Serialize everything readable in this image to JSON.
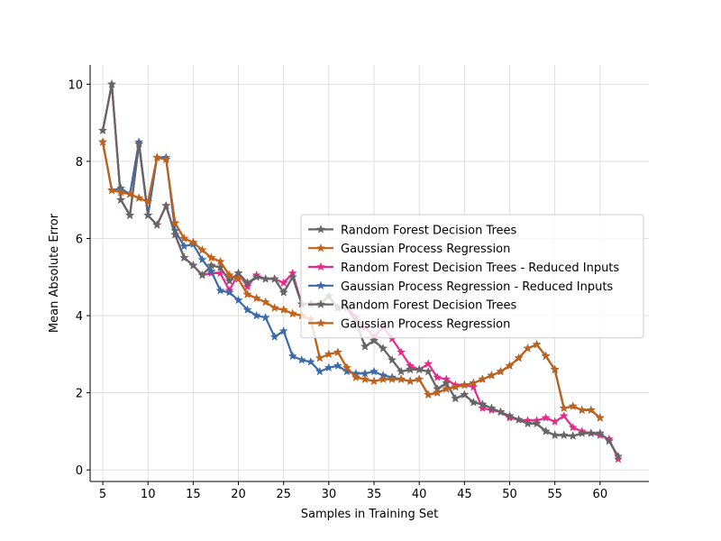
{
  "chart_data": {
    "type": "line",
    "xlabel": "Samples in Training Set",
    "ylabel": "Mean Absolute Error",
    "xlim": [
      3.6,
      65.4
    ],
    "ylim": [
      -0.3,
      10.5
    ],
    "xticks": [
      5,
      10,
      15,
      20,
      25,
      30,
      35,
      40,
      45,
      50,
      55,
      60
    ],
    "yticks": [
      0,
      2,
      4,
      6,
      8,
      10
    ],
    "grid": true,
    "legend_position": "center-right",
    "series": [
      {
        "name": "Random Forest Decision Trees",
        "color": "#666666",
        "x": [
          5,
          6,
          7,
          8,
          9,
          10,
          11,
          12,
          13,
          14,
          15,
          16,
          17,
          18,
          19,
          20,
          21,
          22,
          23,
          24,
          25,
          26,
          27,
          28,
          29,
          30,
          31,
          32,
          33,
          34,
          35,
          36,
          37,
          38,
          39,
          40,
          41,
          42,
          43,
          44,
          45,
          46,
          47,
          48,
          49,
          50,
          51,
          52,
          53,
          54,
          55,
          56,
          57,
          58,
          59,
          60,
          61,
          62
        ],
        "y": [
          8.8,
          10.0,
          7.0,
          6.6,
          8.45,
          6.6,
          6.35,
          6.85,
          6.1,
          5.5,
          5.3,
          5.05,
          5.3,
          5.25,
          4.9,
          5.1,
          4.85,
          5.0,
          4.95,
          4.95,
          4.6,
          5.0,
          4.3,
          4.3,
          4.3,
          4.5,
          4.2,
          4.2,
          3.85,
          3.2,
          3.35,
          3.15,
          2.85,
          2.55,
          2.6,
          2.6,
          2.55,
          2.1,
          2.25,
          1.85,
          1.95,
          1.75,
          1.7,
          1.6,
          1.5,
          1.4,
          1.3,
          1.2,
          1.2,
          1.0,
          0.9,
          0.9,
          0.88,
          0.95,
          0.95,
          0.95,
          0.75,
          0.35
        ]
      },
      {
        "name": "Gaussian Process Regression",
        "color": "#c0621b",
        "x": [
          5,
          6,
          7,
          8,
          9,
          10,
          11,
          12,
          13,
          14,
          15,
          16,
          17,
          18,
          19,
          20,
          21,
          22,
          23,
          24,
          25,
          26,
          27,
          28,
          29,
          30,
          31,
          32,
          33,
          34,
          35,
          36,
          37,
          38,
          39,
          40,
          41,
          42,
          43,
          44,
          45,
          46,
          47,
          48,
          49,
          50,
          51,
          52,
          53,
          54,
          55,
          56,
          57,
          58,
          59,
          60
        ],
        "y": [
          8.5,
          7.25,
          7.2,
          7.15,
          7.05,
          6.95,
          8.1,
          8.05,
          6.4,
          6.0,
          5.9,
          5.7,
          5.5,
          5.4,
          5.05,
          4.95,
          4.55,
          4.45,
          4.35,
          4.2,
          4.15,
          4.05,
          4.0,
          3.9,
          2.9,
          3.0,
          3.05,
          2.65,
          2.4,
          2.35,
          2.3,
          2.35,
          2.35,
          2.35,
          2.3,
          2.35,
          1.95,
          2.0,
          2.1,
          2.15,
          2.2,
          2.25,
          2.35,
          2.45,
          2.55,
          2.7,
          2.9,
          3.15,
          3.25,
          2.95,
          2.6,
          1.6,
          1.65,
          1.55,
          1.55,
          1.35
        ]
      },
      {
        "name": "Random Forest Decision Trees - Reduced Inputs",
        "color": "#e7298a",
        "x": [
          5,
          6,
          7,
          8,
          9,
          10,
          11,
          12,
          13,
          14,
          15,
          16,
          17,
          18,
          19,
          20,
          21,
          22,
          23,
          24,
          25,
          26,
          27,
          28,
          29,
          30,
          31,
          32,
          33,
          34,
          35,
          36,
          37,
          38,
          39,
          40,
          41,
          42,
          43,
          44,
          45,
          46,
          47,
          48,
          49,
          50,
          51,
          52,
          53,
          54,
          55,
          56,
          57,
          58,
          59,
          60,
          61,
          62
        ],
        "y": [
          8.8,
          10.0,
          7.0,
          6.6,
          8.45,
          6.6,
          6.35,
          6.85,
          6.1,
          5.5,
          5.3,
          5.05,
          5.1,
          5.1,
          4.65,
          5.1,
          4.75,
          5.05,
          4.95,
          4.95,
          4.85,
          5.1,
          4.3,
          4.3,
          4.3,
          4.5,
          4.2,
          4.25,
          3.95,
          3.7,
          3.45,
          3.7,
          3.4,
          3.05,
          2.7,
          2.6,
          2.75,
          2.4,
          2.35,
          2.2,
          2.2,
          2.15,
          1.6,
          1.55,
          1.5,
          1.35,
          1.3,
          1.28,
          1.28,
          1.35,
          1.25,
          1.4,
          1.1,
          1.0,
          0.95,
          0.9,
          0.8,
          0.28
        ]
      },
      {
        "name": "Gaussian Process Regression - Reduced Inputs",
        "color": "#3b6aa8",
        "x": [
          5,
          6,
          7,
          8,
          9,
          10,
          11,
          12,
          13,
          14,
          15,
          16,
          17,
          18,
          19,
          20,
          21,
          22,
          23,
          24,
          25,
          26,
          27,
          28,
          29,
          30,
          31,
          32,
          33,
          34,
          35,
          36,
          37,
          38,
          39,
          40,
          41,
          42,
          43,
          44,
          45,
          46,
          47,
          48,
          49,
          50,
          51,
          52,
          53,
          54,
          55,
          56,
          57,
          58,
          59,
          60
        ],
        "y": [
          8.5,
          7.25,
          7.3,
          7.15,
          8.5,
          6.6,
          8.1,
          8.1,
          6.2,
          5.8,
          5.85,
          5.45,
          5.15,
          4.65,
          4.6,
          4.4,
          4.15,
          4.0,
          3.95,
          3.45,
          3.6,
          2.95,
          2.85,
          2.8,
          2.55,
          2.65,
          2.7,
          2.55,
          2.5,
          2.5,
          2.55,
          2.45,
          2.4,
          2.35,
          2.3,
          2.35,
          1.95,
          2.0,
          2.1,
          2.15,
          2.2,
          2.25,
          2.35,
          2.45,
          2.55,
          2.7,
          2.9,
          3.15,
          3.25,
          2.95,
          2.6,
          1.6,
          1.65,
          1.55,
          1.55,
          1.35
        ]
      },
      {
        "name": "Random Forest Decision Trees",
        "color": "#666666",
        "x": [
          5,
          6,
          7,
          8,
          9,
          10,
          11,
          12,
          13,
          14,
          15,
          16,
          17,
          18,
          19,
          20,
          21,
          22,
          23,
          24,
          25,
          26,
          27,
          28,
          29,
          30,
          31,
          32,
          33,
          34,
          35,
          36,
          37,
          38,
          39,
          40,
          41,
          42,
          43,
          44,
          45,
          46,
          47,
          48,
          49,
          50,
          51,
          52,
          53,
          54,
          55,
          56,
          57,
          58,
          59,
          60,
          61,
          62
        ],
        "y": [
          8.8,
          10.0,
          7.0,
          6.6,
          8.45,
          6.6,
          6.35,
          6.85,
          6.1,
          5.5,
          5.3,
          5.05,
          5.3,
          5.25,
          4.9,
          5.1,
          4.85,
          5.0,
          4.95,
          4.95,
          4.6,
          5.0,
          4.3,
          4.3,
          4.3,
          4.5,
          4.2,
          4.2,
          3.85,
          3.2,
          3.35,
          3.15,
          2.85,
          2.55,
          2.6,
          2.6,
          2.55,
          2.1,
          2.25,
          1.85,
          1.95,
          1.75,
          1.7,
          1.6,
          1.5,
          1.4,
          1.3,
          1.2,
          1.2,
          1.0,
          0.9,
          0.9,
          0.88,
          0.95,
          0.95,
          0.95,
          0.75,
          0.35
        ]
      },
      {
        "name": "Gaussian Process Regression",
        "color": "#c0621b",
        "x": [
          5,
          6,
          7,
          8,
          9,
          10,
          11,
          12,
          13,
          14,
          15,
          16,
          17,
          18,
          19,
          20,
          21,
          22,
          23,
          24,
          25,
          26,
          27,
          28,
          29,
          30,
          31,
          32,
          33,
          34,
          35,
          36,
          37,
          38,
          39,
          40,
          41,
          42,
          43,
          44,
          45,
          46,
          47,
          48,
          49,
          50,
          51,
          52,
          53,
          54,
          55,
          56,
          57,
          58,
          59,
          60
        ],
        "y": [
          8.5,
          7.25,
          7.2,
          7.15,
          7.05,
          6.95,
          8.1,
          8.05,
          6.4,
          6.0,
          5.9,
          5.7,
          5.5,
          5.4,
          5.05,
          4.95,
          4.55,
          4.45,
          4.35,
          4.2,
          4.15,
          4.05,
          4.0,
          3.9,
          2.9,
          3.0,
          3.05,
          2.65,
          2.4,
          2.35,
          2.3,
          2.35,
          2.35,
          2.35,
          2.3,
          2.35,
          1.95,
          2.0,
          2.1,
          2.15,
          2.2,
          2.25,
          2.35,
          2.45,
          2.55,
          2.7,
          2.9,
          3.15,
          3.25,
          2.95,
          2.6,
          1.6,
          1.65,
          1.55,
          1.55,
          1.35
        ]
      }
    ]
  }
}
